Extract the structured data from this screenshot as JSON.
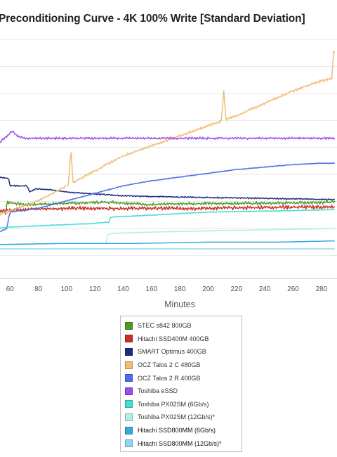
{
  "chart_data": {
    "type": "line",
    "title": "Preconditioning Curve - 4K 100% Write [Standard Deviation]",
    "xlabel": "Minutes",
    "ylabel": "",
    "xlim": [
      50,
      290
    ],
    "x_ticks": [
      60,
      80,
      100,
      120,
      140,
      160,
      180,
      200,
      220,
      240,
      260,
      280
    ],
    "x_tick_labels": [
      "60",
      "80",
      "100",
      "120",
      "140",
      "160",
      "180",
      "200",
      "220",
      "240",
      "260",
      "280"
    ],
    "ylim": [
      0,
      1
    ],
    "grid": true,
    "legend_position": "bottom",
    "series": [
      {
        "name": "STEC s842 800GB",
        "color": "#4a9a22",
        "points": [
          [
            50,
            0.28
          ],
          [
            57,
            0.26
          ],
          [
            58,
            0.305
          ],
          [
            70,
            0.295
          ],
          [
            100,
            0.3
          ],
          [
            130,
            0.305
          ],
          [
            160,
            0.295
          ],
          [
            200,
            0.3
          ],
          [
            240,
            0.3
          ],
          [
            290,
            0.305
          ]
        ],
        "noise": 0.007,
        "spikes": []
      },
      {
        "name": "Hitachi SSD400M 400GB",
        "color": "#c8302b",
        "points": [
          [
            50,
            0.27
          ],
          [
            57,
            0.27
          ],
          [
            60,
            0.275
          ],
          [
            100,
            0.28
          ],
          [
            150,
            0.28
          ],
          [
            200,
            0.28
          ],
          [
            250,
            0.285
          ],
          [
            290,
            0.285
          ]
        ],
        "noise": 0.009,
        "spikes": []
      },
      {
        "name": "SMART Optimus 400GB",
        "color": "#1f2b80",
        "points": [
          [
            50,
            0.405
          ],
          [
            59,
            0.4
          ],
          [
            60,
            0.37
          ],
          [
            72,
            0.37
          ],
          [
            74,
            0.345
          ],
          [
            78,
            0.358
          ],
          [
            88,
            0.355
          ],
          [
            100,
            0.345
          ],
          [
            140,
            0.33
          ],
          [
            180,
            0.325
          ],
          [
            240,
            0.32
          ],
          [
            290,
            0.315
          ]
        ],
        "noise": 0.003,
        "spikes": []
      },
      {
        "name": "OCZ Talos 2 C 480GB",
        "color": "#f0bc78",
        "points": [
          [
            50,
            0.25
          ],
          [
            60,
            0.27
          ],
          [
            80,
            0.31
          ],
          [
            100,
            0.37
          ],
          [
            120,
            0.43
          ],
          [
            140,
            0.49
          ],
          [
            160,
            0.53
          ],
          [
            180,
            0.57
          ],
          [
            200,
            0.61
          ],
          [
            220,
            0.65
          ],
          [
            240,
            0.7
          ],
          [
            260,
            0.75
          ],
          [
            280,
            0.79
          ],
          [
            288,
            0.8
          ],
          [
            290,
            0.83
          ]
        ],
        "noise": 0.006,
        "spikes": [
          [
            103,
            0.52
          ],
          [
            211,
            0.75
          ],
          [
            289,
            0.93
          ]
        ]
      },
      {
        "name": "OCZ Talos 2 R 400GB",
        "color": "#4e6ce8",
        "points": [
          [
            50,
            0.18
          ],
          [
            58,
            0.2
          ],
          [
            59,
            0.24
          ],
          [
            60,
            0.265
          ],
          [
            80,
            0.28
          ],
          [
            100,
            0.31
          ],
          [
            120,
            0.34
          ],
          [
            140,
            0.37
          ],
          [
            160,
            0.39
          ],
          [
            180,
            0.405
          ],
          [
            200,
            0.42
          ],
          [
            220,
            0.435
          ],
          [
            240,
            0.445
          ],
          [
            260,
            0.455
          ],
          [
            280,
            0.46
          ],
          [
            290,
            0.46
          ]
        ],
        "noise": 0.002,
        "spikes": []
      },
      {
        "name": "Toshiba eSSD",
        "color": "#9a4de8",
        "points": [
          [
            50,
            0.53
          ],
          [
            56,
            0.56
          ],
          [
            59,
            0.575
          ],
          [
            62,
            0.59
          ],
          [
            65,
            0.57
          ],
          [
            70,
            0.56
          ],
          [
            100,
            0.56
          ],
          [
            150,
            0.56
          ],
          [
            200,
            0.56
          ],
          [
            250,
            0.56
          ],
          [
            290,
            0.56
          ]
        ],
        "noise": 0.005,
        "spikes": []
      },
      {
        "name": "Toshiba PX02SM (6Gb/s)",
        "color": "#46ddd2",
        "points": [
          [
            50,
            0.2
          ],
          [
            60,
            0.205
          ],
          [
            80,
            0.21
          ],
          [
            100,
            0.215
          ],
          [
            120,
            0.22
          ],
          [
            130,
            0.225
          ],
          [
            131,
            0.245
          ],
          [
            150,
            0.25
          ],
          [
            200,
            0.265
          ],
          [
            250,
            0.27
          ],
          [
            290,
            0.275
          ]
        ],
        "noise": 0.002,
        "spikes": []
      },
      {
        "name": "Toshiba PX02SM (12Gb/s)*",
        "color": "#b2efe7",
        "points": [
          [
            50,
            0.135
          ],
          [
            100,
            0.14
          ],
          [
            128,
            0.14
          ],
          [
            129,
            0.175
          ],
          [
            132,
            0.18
          ],
          [
            160,
            0.185
          ],
          [
            200,
            0.19
          ],
          [
            250,
            0.195
          ],
          [
            290,
            0.2
          ]
        ],
        "noise": 0.002,
        "spikes": []
      },
      {
        "name": "Hitachi SSD800MM (6Gb/s)",
        "color": "#3aa8dc",
        "points": [
          [
            50,
            0.135
          ],
          [
            100,
            0.14
          ],
          [
            150,
            0.14
          ],
          [
            200,
            0.145
          ],
          [
            250,
            0.145
          ],
          [
            290,
            0.15
          ]
        ],
        "noise": 0.0,
        "spikes": []
      },
      {
        "name": "Hitachi SSD800MM (12Gb/s)*",
        "color": "#8fd6f2",
        "points": [
          [
            50,
            0.118
          ],
          [
            290,
            0.118
          ]
        ],
        "noise": 0.0,
        "spikes": []
      }
    ]
  }
}
